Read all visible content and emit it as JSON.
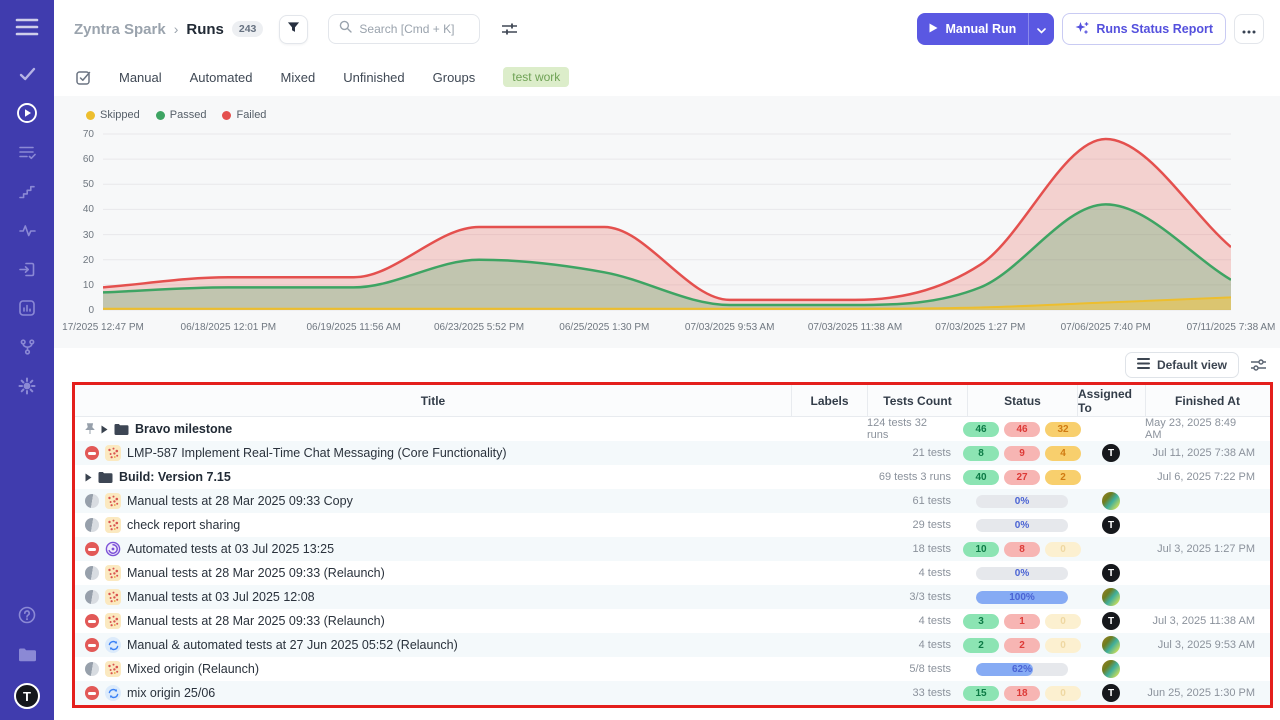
{
  "colors": {
    "sidebar": "#403cae",
    "accent": "#5a58e2",
    "annotation": "#e41f1c",
    "passed": "#3ea463",
    "failed": "#e4504e",
    "skipped": "#edbe2e"
  },
  "sidebar": {
    "items": [
      {
        "id": "menu"
      },
      {
        "id": "tests"
      },
      {
        "id": "runs",
        "active": true
      },
      {
        "id": "test-plans"
      },
      {
        "id": "milestones"
      },
      {
        "id": "activity"
      },
      {
        "id": "inbox"
      },
      {
        "id": "reports"
      },
      {
        "id": "integrations"
      },
      {
        "id": "settings"
      }
    ],
    "bottom": [
      {
        "id": "help"
      },
      {
        "id": "projects"
      }
    ],
    "user_initial": "T"
  },
  "header": {
    "project": "Zyntra Spark",
    "separator": "›",
    "page": "Runs",
    "count": "243",
    "search_placeholder": "Search [Cmd + K]",
    "manual_run": "Manual Run",
    "runs_status_report": "Runs Status Report"
  },
  "tabs": {
    "items": [
      "Manual",
      "Automated",
      "Mixed",
      "Unfinished",
      "Groups"
    ],
    "tag": "test work"
  },
  "chart_data": {
    "type": "area",
    "x": [
      "17/2025 12:47 PM",
      "06/18/2025 12:01 PM",
      "06/19/2025 11:56 AM",
      "06/23/2025 5:52 PM",
      "06/25/2025 1:30 PM",
      "07/03/2025 9:53 AM",
      "07/03/2025 11:38 AM",
      "07/03/2025 1:27 PM",
      "07/06/2025 7:40 PM",
      "07/11/2025 7:38 AM"
    ],
    "series": [
      {
        "name": "Skipped",
        "color": "#edbe2e",
        "fill": "rgba(240,197,60,0.55)",
        "width": 2,
        "values": [
          0.5,
          0.5,
          0.5,
          0.5,
          0.5,
          0.5,
          0.5,
          1,
          3,
          5
        ]
      },
      {
        "name": "Passed",
        "color": "#3ea463",
        "fill": "rgba(88,170,110,0.32)",
        "width": 2.5,
        "values": [
          7,
          9,
          9,
          20,
          15,
          2,
          2,
          9,
          42,
          12
        ]
      },
      {
        "name": "Failed",
        "color": "#e4504e",
        "fill": "rgba(233,96,90,0.26)",
        "width": 2.5,
        "values": [
          9,
          13,
          13,
          33,
          33,
          4,
          4,
          18,
          68,
          25
        ]
      }
    ],
    "ylim": [
      0,
      70
    ],
    "ytick_step": 10,
    "grid": true,
    "legend_position": "top-left"
  },
  "table": {
    "view_button": "Default view",
    "columns": [
      "Title",
      "Labels",
      "Tests Count",
      "Status",
      "Assigned To",
      "Finished At"
    ],
    "rows": [
      {
        "pinned": true,
        "expandable": true,
        "kind": "folder",
        "status_icon": null,
        "type_icon": null,
        "title": "Bravo milestone",
        "labels": "",
        "tests": "124 tests 32 runs",
        "status": {
          "mode": "counts",
          "passed": 46,
          "failed": 46,
          "skipped": 32,
          "skipped_faded": false
        },
        "assignee": null,
        "finished": "May 23, 2025 8:49 AM"
      },
      {
        "pinned": false,
        "expandable": false,
        "kind": "run",
        "status_icon": "stopped",
        "type_icon": "manual",
        "title": "LMP-587 Implement Real-Time Chat Messaging (Core Functionality)",
        "labels": "",
        "tests": "21 tests",
        "status": {
          "mode": "counts",
          "passed": 8,
          "failed": 9,
          "skipped": 4,
          "skipped_faded": false
        },
        "assignee": "T",
        "finished": "Jul 11, 2025 7:38 AM"
      },
      {
        "pinned": false,
        "expandable": true,
        "kind": "folder",
        "status_icon": null,
        "type_icon": null,
        "title": "Build: Version 7.15",
        "labels": "",
        "tests": "69 tests 3 runs",
        "status": {
          "mode": "counts",
          "passed": 40,
          "failed": 27,
          "skipped": 2,
          "skipped_faded": false
        },
        "assignee": null,
        "finished": "Jul 6, 2025 7:22 PM"
      },
      {
        "pinned": false,
        "expandable": false,
        "kind": "run",
        "status_icon": "in-progress",
        "type_icon": "manual",
        "title": "Manual tests at 28 Mar 2025 09:33 Copy",
        "labels": "",
        "tests": "61 tests",
        "status": {
          "mode": "progress",
          "percent": 0,
          "label": "0%"
        },
        "assignee": "img",
        "finished": ""
      },
      {
        "pinned": false,
        "expandable": false,
        "kind": "run",
        "status_icon": "in-progress",
        "type_icon": "manual",
        "title": "check report sharing",
        "labels": "",
        "tests": "29 tests",
        "status": {
          "mode": "progress",
          "percent": 0,
          "label": "0%"
        },
        "assignee": "T",
        "finished": ""
      },
      {
        "pinned": false,
        "expandable": false,
        "kind": "run",
        "status_icon": "stopped",
        "type_icon": "automated",
        "title": "Automated tests at 03 Jul 2025 13:25",
        "labels": "",
        "tests": "18 tests",
        "status": {
          "mode": "counts",
          "passed": 10,
          "failed": 8,
          "skipped": 0,
          "skipped_faded": true
        },
        "assignee": null,
        "finished": "Jul 3, 2025 1:27 PM"
      },
      {
        "pinned": false,
        "expandable": false,
        "kind": "run",
        "status_icon": "in-progress",
        "type_icon": "manual",
        "title": "Manual tests at 28 Mar 2025 09:33 (Relaunch)",
        "labels": "",
        "tests": "4 tests",
        "status": {
          "mode": "progress",
          "percent": 0,
          "label": "0%"
        },
        "assignee": "T",
        "finished": ""
      },
      {
        "pinned": false,
        "expandable": false,
        "kind": "run",
        "status_icon": "in-progress",
        "type_icon": "manual",
        "title": "Manual tests at 03 Jul 2025 12:08",
        "labels": "",
        "tests": "3/3 tests",
        "status": {
          "mode": "progress",
          "percent": 100,
          "label": "100%"
        },
        "assignee": "img",
        "finished": ""
      },
      {
        "pinned": false,
        "expandable": false,
        "kind": "run",
        "status_icon": "stopped",
        "type_icon": "manual",
        "title": "Manual tests at 28 Mar 2025 09:33 (Relaunch)",
        "labels": "",
        "tests": "4 tests",
        "status": {
          "mode": "counts",
          "passed": 3,
          "failed": 1,
          "skipped": 0,
          "skipped_faded": true
        },
        "assignee": "T",
        "finished": "Jul 3, 2025 11:38 AM"
      },
      {
        "pinned": false,
        "expandable": false,
        "kind": "run",
        "status_icon": "stopped",
        "type_icon": "mixed",
        "title": "Manual & automated tests at 27 Jun 2025 05:52 (Relaunch)",
        "labels": "",
        "tests": "4 tests",
        "status": {
          "mode": "counts",
          "passed": 2,
          "failed": 2,
          "skipped": 0,
          "skipped_faded": true
        },
        "assignee": "img",
        "finished": "Jul 3, 2025 9:53 AM"
      },
      {
        "pinned": false,
        "expandable": false,
        "kind": "run",
        "status_icon": "in-progress",
        "type_icon": "manual",
        "title": "Mixed origin (Relaunch)",
        "labels": "",
        "tests": "5/8 tests",
        "status": {
          "mode": "progress",
          "percent": 62,
          "label": "62%"
        },
        "assignee": "img",
        "finished": ""
      },
      {
        "pinned": false,
        "expandable": false,
        "kind": "run",
        "status_icon": "stopped",
        "type_icon": "mixed",
        "title": "mix origin 25/06",
        "labels": "",
        "tests": "33 tests",
        "status": {
          "mode": "counts",
          "passed": 15,
          "failed": 18,
          "skipped": 0,
          "skipped_faded": true
        },
        "assignee": "T",
        "finished": "Jun 25, 2025 1:30 PM"
      }
    ]
  }
}
